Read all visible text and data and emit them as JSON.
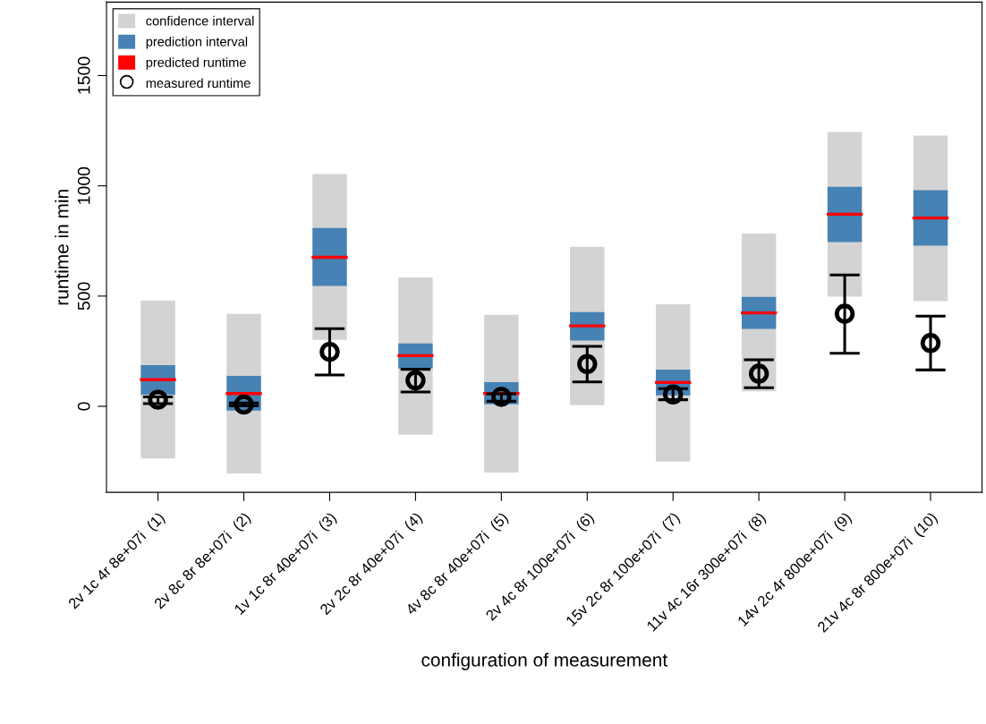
{
  "chart_data": {
    "type": "bar",
    "xlabel": "configuration of measurement",
    "ylabel": "runtime in min",
    "categories": [
      "2v 1c 4r 8e+07i  (1)",
      "2v 8c 8r 8e+07i  (2)",
      "1v 1c 8r 40e+07i  (3)",
      "2v 2c 8r 40e+07i  (4)",
      "4v 8c 8r 40e+07i  (5)",
      "2v 4c 8r 100e+07i  (6)",
      "15v 2c 8r 100e+07i  (7)",
      "11v 4c 16r 300e+07i  (8)",
      "14v 2c 4r 800e+07i  (9)",
      "21v 4c 8r 800e+07i  (10)"
    ],
    "series": [
      {
        "name": "confidence interval",
        "color": "#d3d3d3",
        "base": [
          -236,
          -304,
          302,
          -129,
          -300,
          5,
          -251,
          68,
          497,
          477
        ],
        "values": [
          716,
          723,
          751,
          714,
          715,
          719,
          714,
          717,
          747,
          751
        ]
      },
      {
        "name": "prediction interval",
        "color": "#4682b4",
        "base": [
          53,
          -19,
          546,
          172,
          9,
          298,
          50,
          351,
          745,
          729
        ],
        "values": [
          134,
          157,
          263,
          113,
          101,
          129,
          117,
          145,
          251,
          251
        ]
      },
      {
        "name": "predicted runtime",
        "color": "#ff0000",
        "base": [
          121,
          58,
          676,
          230,
          58,
          365,
          108,
          424,
          871,
          854
        ],
        "values": [
          0,
          0,
          0,
          0,
          0,
          0,
          0,
          0,
          0,
          0
        ]
      },
      {
        "name": "measured runtime",
        "type": "scatter",
        "marker": "circle",
        "color": "#000000",
        "values": [
          30,
          8,
          247,
          118,
          43,
          192,
          54,
          148,
          420,
          287
        ],
        "errors": [
          [
            12,
            43
          ],
          [
            2,
            15
          ],
          [
            142,
            352
          ],
          [
            65,
            168
          ],
          [
            23,
            57
          ],
          [
            111,
            272
          ],
          [
            30,
            80
          ],
          [
            84,
            211
          ],
          [
            241,
            596
          ],
          [
            165,
            409
          ]
        ]
      }
    ],
    "ylim": [
      -390,
      1833
    ],
    "yticks": [
      0,
      500,
      1000,
      1500
    ],
    "grid": false,
    "legend": "top left"
  }
}
